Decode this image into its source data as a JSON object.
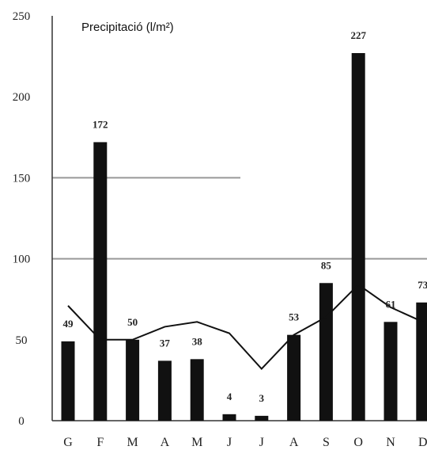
{
  "chart_data": {
    "type": "bar",
    "title": "Precipitació (l/m²)",
    "categories": [
      "G",
      "F",
      "M",
      "A",
      "M",
      "J",
      "J",
      "A",
      "S",
      "O",
      "N",
      "D"
    ],
    "series": [
      {
        "type": "bar",
        "values": [
          49,
          172,
          50,
          37,
          38,
          4,
          3,
          53,
          85,
          227,
          61,
          73
        ]
      },
      {
        "type": "line",
        "values": [
          71,
          50,
          50,
          58,
          61,
          54,
          32,
          53,
          64,
          84,
          70,
          61
        ]
      }
    ],
    "ylim": [
      0,
      250
    ],
    "yticks": [
      0,
      50,
      100,
      150,
      200,
      250
    ],
    "gridlines": [
      100,
      150
    ],
    "colors": {
      "bar": "#111111",
      "line": "#111111",
      "grid": "#999999",
      "axis": "#333333"
    }
  }
}
